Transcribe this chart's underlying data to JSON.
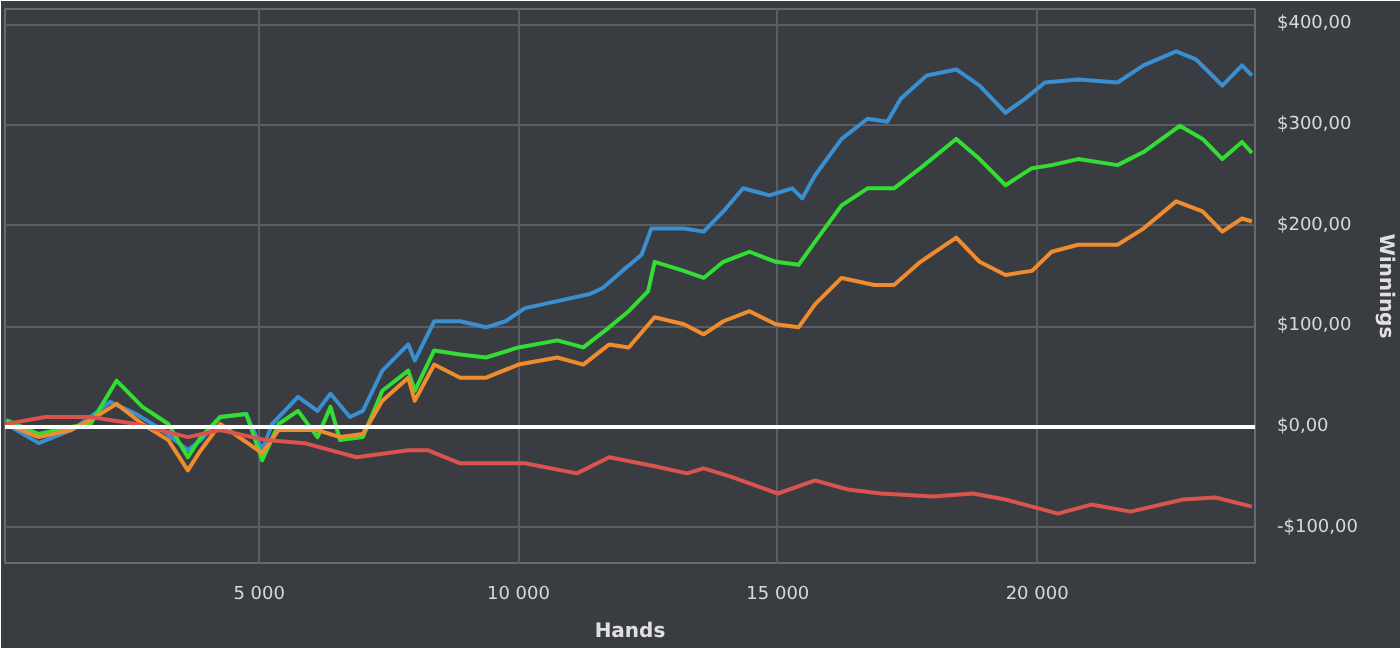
{
  "chart_data": {
    "type": "line",
    "xlabel": "Hands",
    "ylabel": "Winnings",
    "xlim": [
      100,
      24200
    ],
    "ylim": [
      -135,
      415
    ],
    "xticks": [
      {
        "value": 5000,
        "label": "5 000"
      },
      {
        "value": 10000,
        "label": "10 000"
      },
      {
        "value": 15000,
        "label": "15 000"
      },
      {
        "value": 20000,
        "label": "20 000"
      }
    ],
    "yticks": [
      {
        "value": -100,
        "label": "-$100,00"
      },
      {
        "value": 0,
        "label": "$0,00"
      },
      {
        "value": 100,
        "label": "$100,00"
      },
      {
        "value": 200,
        "label": "$200,00"
      },
      {
        "value": 300,
        "label": "$300,00"
      },
      {
        "value": 400,
        "label": "$400,00"
      }
    ],
    "grid": true,
    "marker": "none",
    "line_style": "solid",
    "ref_lines": [
      {
        "axis": "y",
        "value": 0,
        "label": null,
        "color": "#ffffff"
      }
    ],
    "series": [
      {
        "color": "#3a8fd0",
        "x": [
          125,
          750,
          1375,
          1750,
          2125,
          2625,
          3125,
          3625,
          3875,
          4250,
          4750,
          5060,
          5250,
          5750,
          6125,
          6375,
          6750,
          7000,
          7375,
          7875,
          8000,
          8375,
          8875,
          9375,
          9750,
          10125,
          10750,
          11375,
          11625,
          12000,
          12375,
          12560,
          13190,
          13570,
          13950,
          14330,
          14835,
          15280,
          15470,
          15720,
          16230,
          16730,
          17110,
          17370,
          17870,
          18440,
          18890,
          19390,
          19770,
          20150,
          20790,
          21550,
          22050,
          22680,
          23060,
          23320,
          23570,
          23950,
          24140
        ],
        "values": [
          3,
          -16,
          -3,
          10,
          25,
          13,
          -3,
          -23,
          -13,
          10,
          13,
          -23,
          3,
          30,
          16,
          33,
          10,
          16,
          56,
          82,
          66,
          105,
          105,
          99,
          105,
          118,
          125,
          132,
          138,
          155,
          171,
          197,
          197,
          194,
          214,
          237,
          230,
          237,
          227,
          250,
          286,
          306,
          303,
          326,
          349,
          355,
          339,
          312,
          326,
          342,
          345,
          342,
          359,
          373,
          365,
          352,
          339,
          359,
          349
        ]
      },
      {
        "color": "#33dd33",
        "x": [
          125,
          750,
          1375,
          1750,
          2250,
          2750,
          3250,
          3625,
          3875,
          4250,
          4750,
          5060,
          5375,
          5750,
          6125,
          6375,
          6560,
          7000,
          7375,
          7875,
          8000,
          8375,
          8875,
          9375,
          10000,
          10750,
          11250,
          11750,
          12125,
          12500,
          12625,
          13190,
          13570,
          13950,
          14455,
          14960,
          15400,
          15720,
          16230,
          16730,
          17240,
          17750,
          18440,
          18890,
          19390,
          19900,
          20280,
          20790,
          21550,
          22050,
          22750,
          23190,
          23570,
          23950,
          24140
        ],
        "values": [
          7,
          -7,
          0,
          3,
          46,
          20,
          3,
          -30,
          -10,
          10,
          13,
          -33,
          3,
          16,
          -10,
          20,
          -13,
          -10,
          36,
          56,
          36,
          76,
          72,
          69,
          79,
          86,
          79,
          99,
          115,
          135,
          164,
          155,
          148,
          164,
          174,
          164,
          161,
          184,
          220,
          237,
          237,
          257,
          286,
          266,
          240,
          257,
          260,
          266,
          260,
          273,
          299,
          286,
          266,
          283,
          272
        ]
      },
      {
        "color": "#f08c2e",
        "x": [
          125,
          750,
          1375,
          1750,
          2250,
          2750,
          3250,
          3625,
          3875,
          4250,
          5060,
          5375,
          6125,
          6560,
          7000,
          7375,
          7875,
          8000,
          8375,
          8875,
          9375,
          10000,
          10750,
          11250,
          11750,
          12125,
          12625,
          13190,
          13570,
          13950,
          14455,
          14960,
          15400,
          15720,
          16230,
          16860,
          17240,
          17750,
          18440,
          18890,
          19390,
          19900,
          20280,
          20790,
          21550,
          22050,
          22680,
          23190,
          23570,
          23950,
          24140
        ],
        "values": [
          3,
          -10,
          -3,
          7,
          23,
          3,
          -13,
          -43,
          -23,
          3,
          -26,
          -3,
          -3,
          -10,
          -7,
          26,
          49,
          26,
          62,
          49,
          49,
          62,
          69,
          62,
          82,
          79,
          109,
          102,
          92,
          105,
          115,
          102,
          99,
          122,
          148,
          141,
          141,
          164,
          188,
          164,
          151,
          155,
          174,
          181,
          181,
          197,
          224,
          214,
          194,
          207,
          204
        ]
      },
      {
        "color": "#d9534f",
        "x": [
          125,
          875,
          1750,
          2625,
          3625,
          4250,
          5125,
          5875,
          6875,
          7875,
          8250,
          8875,
          10125,
          11125,
          11750,
          12625,
          13250,
          13570,
          14080,
          15000,
          15720,
          16350,
          16990,
          18000,
          18760,
          19390,
          19900,
          20400,
          21040,
          21800,
          22810,
          23440,
          24140
        ],
        "values": [
          3,
          10,
          10,
          3,
          -10,
          -3,
          -13,
          -16,
          -30,
          -23,
          -23,
          -36,
          -36,
          -46,
          -30,
          -39,
          -46,
          -41,
          -49,
          -66,
          -53,
          -62,
          -66,
          -69,
          -66,
          -72,
          -79,
          -86,
          -77,
          -84,
          -72,
          -70,
          -79
        ]
      }
    ]
  }
}
